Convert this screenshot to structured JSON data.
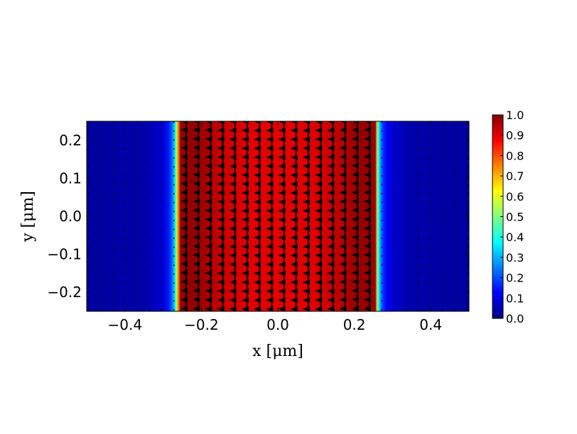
{
  "chart_data": {
    "type": "heatmap",
    "title": "",
    "xlabel": "x [μm]",
    "ylabel": "y [μm]",
    "xlim": [
      -0.5,
      0.5
    ],
    "ylim": [
      -0.25,
      0.25
    ],
    "x_ticks": [
      -0.4,
      -0.2,
      0.0,
      0.2,
      0.4
    ],
    "x_tick_labels": [
      "−0.4",
      "−0.2",
      "0.0",
      "0.2",
      "0.4"
    ],
    "y_ticks": [
      -0.2,
      -0.1,
      0.0,
      0.1,
      0.2
    ],
    "y_tick_labels": [
      "−0.2",
      "−0.1",
      "0.0",
      "0.1",
      "0.2"
    ],
    "colormap": "jet",
    "colorbar": {
      "range": [
        0.0,
        1.0
      ],
      "ticks": [
        0.0,
        0.1,
        0.2,
        0.3,
        0.4,
        0.5,
        0.6,
        0.7,
        0.8,
        0.9,
        1.0
      ],
      "tick_labels": [
        "0.0",
        "0.1",
        "0.2",
        "0.3",
        "0.4",
        "0.5",
        "0.6",
        "0.7",
        "0.8",
        "0.9",
        "1.0"
      ]
    },
    "field_profile": {
      "x": [
        -0.5,
        -0.35,
        -0.3,
        -0.285,
        -0.275,
        -0.27,
        -0.265,
        -0.26,
        -0.255,
        -0.23,
        -0.2,
        -0.15,
        -0.1,
        0.0,
        0.1,
        0.15,
        0.2,
        0.23,
        0.255,
        0.26,
        0.265,
        0.27,
        0.275,
        0.285,
        0.3,
        0.35,
        0.5
      ],
      "value": [
        0.03,
        0.04,
        0.08,
        0.15,
        0.25,
        0.35,
        0.55,
        0.75,
        0.97,
        0.98,
        0.97,
        0.93,
        0.91,
        0.9,
        0.91,
        0.93,
        0.97,
        0.98,
        0.97,
        0.55,
        0.35,
        0.25,
        0.18,
        0.12,
        0.08,
        0.04,
        0.03
      ]
    },
    "quiver": {
      "direction": "+y",
      "x_step": 0.032,
      "y_step": 0.0235,
      "core_x_range": [
        -0.255,
        0.255
      ]
    }
  }
}
